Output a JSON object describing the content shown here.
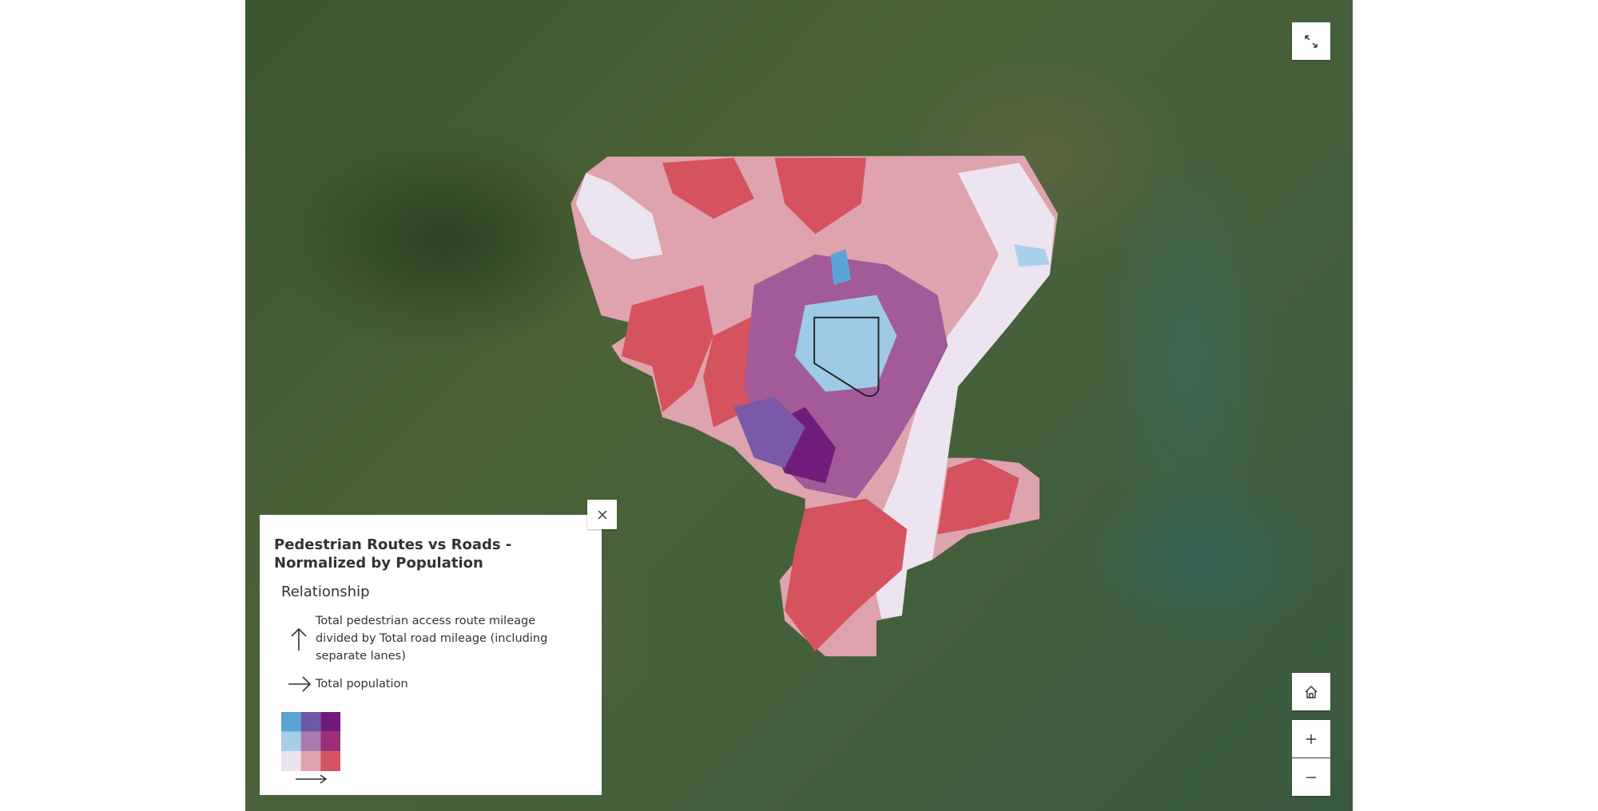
{
  "legend": {
    "title": "Pedestrian Routes vs Roads - Normalized by Population",
    "subtitle": "Relationship",
    "items": [
      {
        "label": "Total pedestrian access route mileage divided by Total road mileage (including separate lanes)"
      },
      {
        "label": "Total population"
      }
    ]
  }
}
